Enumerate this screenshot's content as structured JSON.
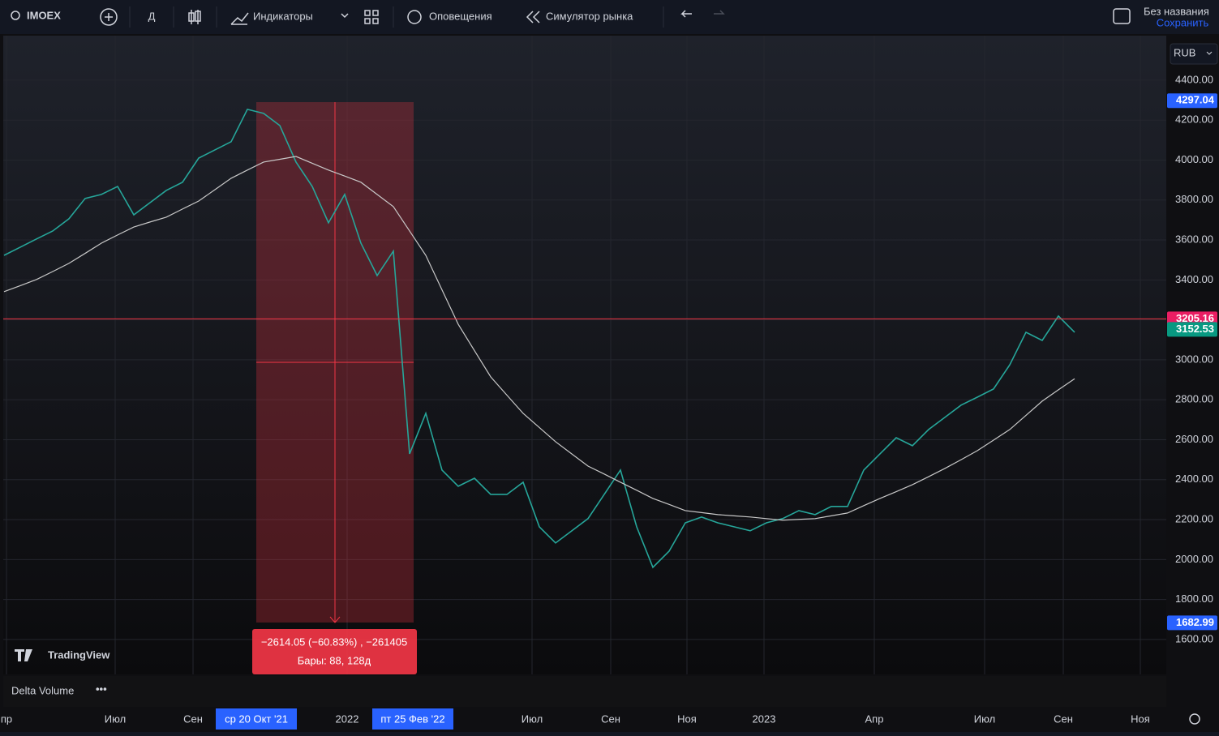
{
  "toolbar": {
    "symbol": "IMOEX",
    "interval": "Д",
    "indicators": "Индикаторы",
    "alerts": "Оповещения",
    "replay": "Симулятор рынка",
    "layout_name": "Без названия",
    "save": "Сохранить"
  },
  "currency": "RUB",
  "watermark": "TradingView",
  "pane_legend": "Delta Volume",
  "measure": {
    "change": "−2614.05 (−60.83%) , −261405",
    "bars": "Бары: 88, 128д"
  },
  "crosshair_dates": [
    "ср 20 Окт '21",
    "пт 25 Фев '22"
  ],
  "chart_data": {
    "type": "line",
    "xticks": [
      "пр",
      "Июл",
      "Сен",
      "2022",
      "Июл",
      "Сен",
      "Ноя",
      "2023",
      "Апр",
      "Июл",
      "Сен",
      "Ноя"
    ],
    "ylim": [
      1425,
      4631
    ],
    "yticks": [
      {
        "value": 1600,
        "label": "1600.00"
      },
      {
        "value": 1800,
        "label": "1800.00"
      },
      {
        "value": 2000,
        "label": "2000.00"
      },
      {
        "value": 2200,
        "label": "2200.00"
      },
      {
        "value": 2400,
        "label": "2400.00"
      },
      {
        "value": 2600,
        "label": "2600.00"
      },
      {
        "value": 2800,
        "label": "2800.00"
      },
      {
        "value": 3000,
        "label": "3000.00"
      },
      {
        "value": 3200,
        "label": "3200.00"
      },
      {
        "value": 3400,
        "label": "3400.00"
      },
      {
        "value": 3600,
        "label": "3600.00"
      },
      {
        "value": 3800,
        "label": "3800.00"
      },
      {
        "value": 4000,
        "label": "4000.00"
      },
      {
        "value": 4200,
        "label": "4200.00"
      },
      {
        "value": 4400,
        "label": "4400.00"
      }
    ],
    "grid": true,
    "series": [
      {
        "name": "IMOEX",
        "color": "#26a69a",
        "values": [
          3523,
          3564,
          3605,
          3645,
          3706,
          3808,
          3828,
          3868,
          3726,
          3787,
          3848,
          3889,
          4010,
          4051,
          4092,
          4254,
          4234,
          4173,
          3990,
          3868,
          3686,
          3828,
          3584,
          3422,
          3544,
          2529,
          2732,
          2448,
          2367,
          2407,
          2326,
          2326,
          2387,
          2164,
          2083,
          2144,
          2205,
          2326,
          2448,
          2164,
          1961,
          2042,
          2184,
          2213,
          2184,
          2164,
          2144,
          2184,
          2205,
          2245,
          2225,
          2266,
          2266,
          2448,
          2529,
          2610,
          2570,
          2651,
          2712,
          2773,
          2813,
          2854,
          2975,
          3138,
          3097,
          3219,
          3138
        ]
      },
      {
        "name": "MA",
        "color": "#c8c8c8",
        "values": [
          3341,
          3371,
          3402,
          3442,
          3483,
          3533,
          3584,
          3625,
          3665,
          3690,
          3714,
          3755,
          3795,
          3852,
          3909,
          3950,
          3990,
          4004,
          4018,
          3984,
          3950,
          3920,
          3889,
          3828,
          3767,
          3645,
          3523,
          3350,
          3178,
          3046,
          2915,
          2823,
          2732,
          2661,
          2590,
          2529,
          2468,
          2428,
          2387,
          2347,
          2306,
          2276,
          2245,
          2235,
          2225,
          2219,
          2213,
          2205,
          2197,
          2201,
          2205,
          2219,
          2233,
          2270,
          2306,
          2340,
          2375,
          2415,
          2456,
          2500,
          2545,
          2598,
          2651,
          2722,
          2793,
          2850,
          2905
        ]
      }
    ],
    "price_line": 3205.16,
    "price_labels": [
      {
        "value": 4297.04,
        "color": "#2962ff"
      },
      {
        "value": 3205.16,
        "color": "#e91e63"
      },
      {
        "value": 3152.53,
        "color": "#089981"
      },
      {
        "value": 1682.99,
        "color": "#2962ff"
      }
    ]
  }
}
